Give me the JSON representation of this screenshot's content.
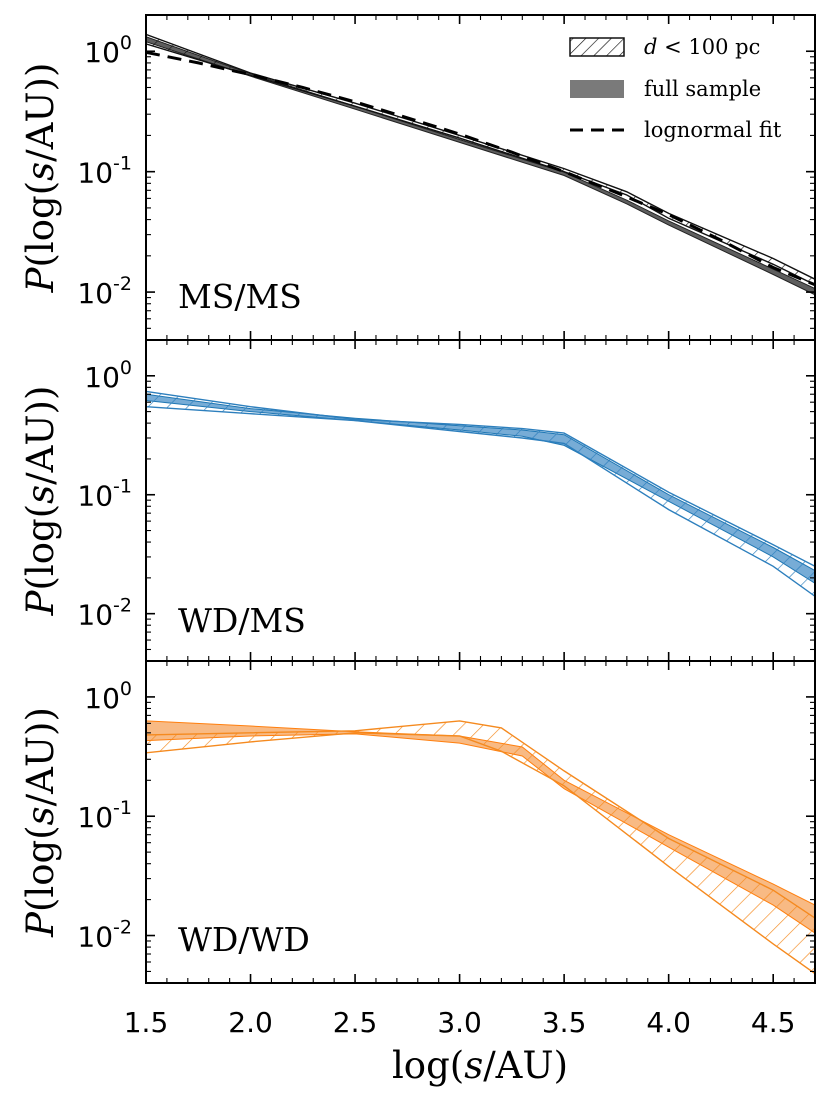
{
  "chart_data": {
    "type": "line",
    "xlabel": "log(s/AU)",
    "ylabel": "P(log(s/AU))",
    "x_ticks": [
      "1.5",
      "2.0",
      "2.5",
      "3.0",
      "3.5",
      "4.0",
      "4.5"
    ],
    "x_tick_values": [
      1.5,
      2.0,
      2.5,
      3.0,
      3.5,
      4.0,
      4.5
    ],
    "xlim": [
      1.5,
      4.7
    ],
    "y_scale": "log",
    "ylim": [
      0.004,
      2.0
    ],
    "y_ticks": [
      {
        "value": 1,
        "base": "10",
        "exp": "0"
      },
      {
        "value": 0.1,
        "base": "10",
        "exp": "-1"
      },
      {
        "value": 0.01,
        "base": "10",
        "exp": "-2"
      }
    ],
    "legend": {
      "location": "top-right (top panel)",
      "entries": [
        {
          "style": "hatched",
          "label_italic": "d",
          "label_rest": " < 100 pc"
        },
        {
          "style": "filled",
          "label": "full sample"
        },
        {
          "style": "dashed",
          "label": "lognormal fit"
        }
      ]
    },
    "panels": [
      {
        "label": "MS/MS",
        "color": "#222222",
        "fill_color": "#555555",
        "hatch_color": "#111111",
        "full_sample": {
          "x": [
            1.5,
            2.0,
            2.5,
            3.0,
            3.5,
            3.8,
            4.0,
            4.5,
            4.7
          ],
          "lower": [
            1.2,
            0.62,
            0.33,
            0.175,
            0.093,
            0.054,
            0.036,
            0.014,
            0.0095
          ],
          "upper": [
            1.32,
            0.65,
            0.35,
            0.185,
            0.099,
            0.058,
            0.039,
            0.0155,
            0.0107
          ]
        },
        "d100": {
          "x": [
            1.5,
            2.0,
            2.5,
            3.0,
            3.5,
            3.8,
            4.0,
            4.5,
            4.7
          ],
          "lower": [
            1.15,
            0.63,
            0.35,
            0.19,
            0.1,
            0.064,
            0.041,
            0.017,
            0.0115
          ],
          "upper": [
            1.38,
            0.66,
            0.37,
            0.2,
            0.106,
            0.068,
            0.045,
            0.019,
            0.0128
          ]
        },
        "lognormal_fit": {
          "x": [
            1.5,
            1.75,
            2.0,
            2.25,
            2.5,
            2.75,
            3.0,
            3.25,
            3.5,
            3.75,
            4.0,
            4.25,
            4.5,
            4.7
          ],
          "y": [
            0.98,
            0.8,
            0.64,
            0.5,
            0.38,
            0.28,
            0.205,
            0.145,
            0.1,
            0.067,
            0.044,
            0.027,
            0.016,
            0.0115
          ]
        }
      },
      {
        "label": "WD/MS",
        "color": "#1f77b4",
        "fill_color": "#4a90c8",
        "hatch_color": "#2d7fbd",
        "full_sample": {
          "x": [
            1.5,
            2.0,
            2.5,
            3.0,
            3.3,
            3.5,
            4.0,
            4.5,
            4.7
          ],
          "lower": [
            0.62,
            0.5,
            0.42,
            0.35,
            0.31,
            0.26,
            0.088,
            0.03,
            0.018
          ],
          "upper": [
            0.7,
            0.53,
            0.44,
            0.38,
            0.35,
            0.32,
            0.1,
            0.036,
            0.023
          ]
        },
        "d100": {
          "x": [
            1.5,
            2.0,
            2.5,
            3.0,
            3.3,
            3.5,
            4.0,
            4.5,
            4.7
          ],
          "lower": [
            0.55,
            0.48,
            0.42,
            0.34,
            0.3,
            0.27,
            0.075,
            0.025,
            0.014
          ],
          "upper": [
            0.74,
            0.55,
            0.43,
            0.39,
            0.36,
            0.33,
            0.105,
            0.038,
            0.025
          ]
        }
      },
      {
        "label": "WD/WD",
        "color": "#ff7f0e",
        "fill_color": "#f6a35b",
        "hatch_color": "#f58a1f",
        "full_sample": {
          "x": [
            1.5,
            2.0,
            2.5,
            3.0,
            3.3,
            3.5,
            4.0,
            4.5,
            4.7
          ],
          "lower": [
            0.43,
            0.47,
            0.49,
            0.41,
            0.32,
            0.17,
            0.055,
            0.018,
            0.0105
          ],
          "upper": [
            0.63,
            0.57,
            0.51,
            0.47,
            0.38,
            0.2,
            0.07,
            0.027,
            0.018
          ]
        },
        "d100": {
          "x": [
            1.5,
            2.0,
            2.5,
            3.0,
            3.2,
            3.5,
            4.0,
            4.5,
            4.7
          ],
          "lower": [
            0.34,
            0.42,
            0.5,
            0.47,
            0.35,
            0.18,
            0.038,
            0.0085,
            0.0048
          ],
          "upper": [
            0.48,
            0.5,
            0.52,
            0.63,
            0.55,
            0.24,
            0.065,
            0.024,
            0.014
          ]
        }
      }
    ]
  }
}
